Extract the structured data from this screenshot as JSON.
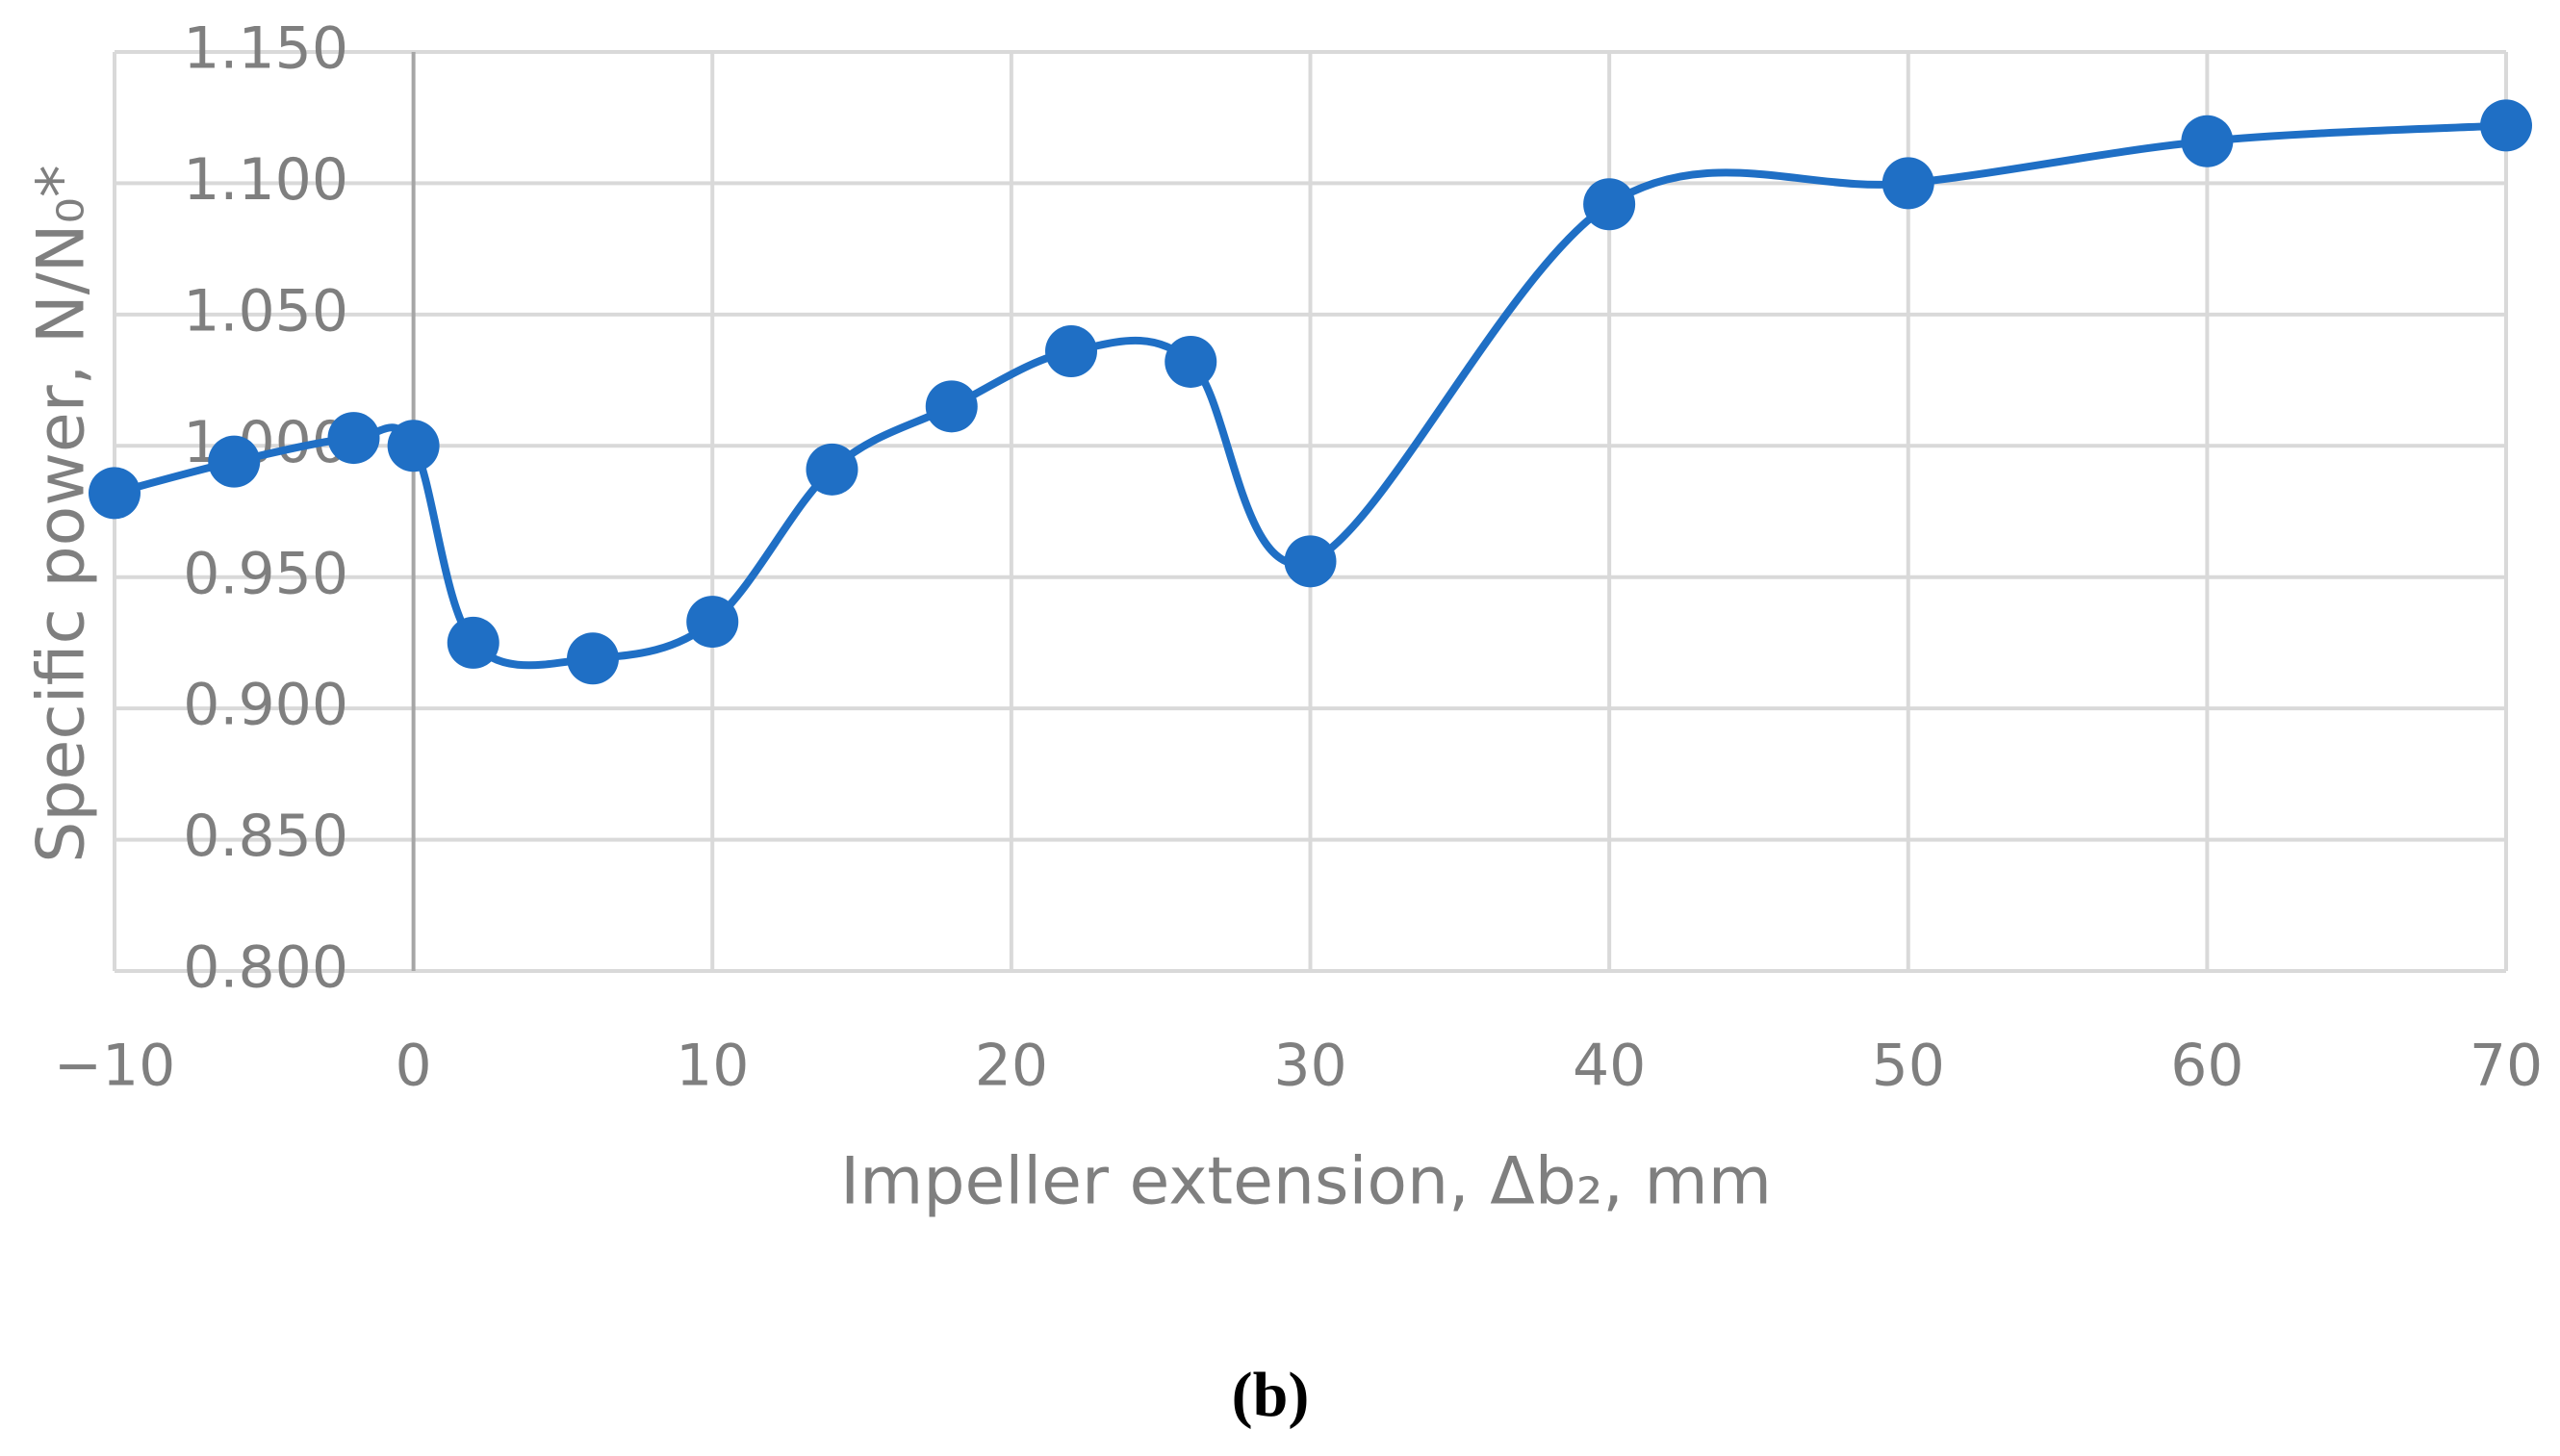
{
  "chart_data": {
    "type": "line",
    "x_label": "Impeller extension, Δb₂, mm",
    "y_label": "Specific power, N/N₀*",
    "caption": "(b)",
    "x": [
      -10,
      -6,
      -2,
      0,
      2,
      6,
      10,
      14,
      18,
      22,
      26,
      30,
      40,
      50,
      60,
      70
    ],
    "series": [
      {
        "color": "#1f6fc5",
        "values": [
          0.982,
          0.994,
          1.003,
          1.0,
          0.925,
          0.919,
          0.933,
          0.991,
          1.015,
          1.036,
          1.032,
          0.956,
          1.092,
          1.1,
          1.116,
          1.122
        ]
      }
    ],
    "xlim": [
      -10,
      70
    ],
    "xticks": [
      {
        "value": -10,
        "label": "−10"
      },
      0,
      10,
      20,
      30,
      40,
      50,
      60,
      70
    ],
    "ylim": [
      0.8,
      1.15
    ],
    "yticks": [
      {
        "value": 0.8,
        "label": "0.800"
      },
      {
        "value": 0.85,
        "label": "0.850"
      },
      {
        "value": 0.9,
        "label": "0.900"
      },
      {
        "value": 0.95,
        "label": "0.950"
      },
      {
        "value": 1.0,
        "label": "1.000"
      },
      {
        "value": 1.05,
        "label": "1.050"
      },
      {
        "value": 1.1,
        "label": "1.100"
      },
      {
        "value": 1.15,
        "label": "1.150"
      }
    ],
    "grid": true
  }
}
